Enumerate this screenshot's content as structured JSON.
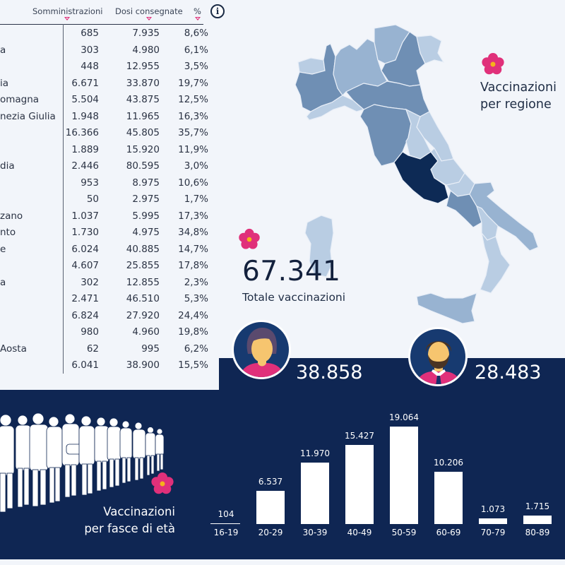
{
  "table": {
    "headers": {
      "somministrazioni": "Somministrazioni",
      "dosi": "Dosi consegnate",
      "pct": "%"
    },
    "info_icon": "i",
    "rows": [
      {
        "name": "",
        "somm": "685",
        "dosi": "7.935",
        "pct": "8,6%"
      },
      {
        "name": "a",
        "somm": "303",
        "dosi": "4.980",
        "pct": "6,1%"
      },
      {
        "name": "",
        "somm": "448",
        "dosi": "12.955",
        "pct": "3,5%"
      },
      {
        "name": "ia",
        "somm": "6.671",
        "dosi": "33.870",
        "pct": "19,7%"
      },
      {
        "name": "omagna",
        "somm": "5.504",
        "dosi": "43.875",
        "pct": "12,5%"
      },
      {
        "name": "nezia Giulia",
        "somm": "1.948",
        "dosi": "11.965",
        "pct": "16,3%"
      },
      {
        "name": "",
        "somm": "16.366",
        "dosi": "45.805",
        "pct": "35,7%"
      },
      {
        "name": "",
        "somm": "1.889",
        "dosi": "15.920",
        "pct": "11,9%"
      },
      {
        "name": "dia",
        "somm": "2.446",
        "dosi": "80.595",
        "pct": "3,0%"
      },
      {
        "name": "",
        "somm": "953",
        "dosi": "8.975",
        "pct": "10,6%"
      },
      {
        "name": "",
        "somm": "50",
        "dosi": "2.975",
        "pct": "1,7%"
      },
      {
        "name": "zano",
        "somm": "1.037",
        "dosi": "5.995",
        "pct": "17,3%"
      },
      {
        "name": "nto",
        "somm": "1.730",
        "dosi": "4.975",
        "pct": "34,8%"
      },
      {
        "name": "e",
        "somm": "6.024",
        "dosi": "40.885",
        "pct": "14,7%"
      },
      {
        "name": "",
        "somm": "4.607",
        "dosi": "25.855",
        "pct": "17,8%"
      },
      {
        "name": "a",
        "somm": "302",
        "dosi": "12.855",
        "pct": "2,3%"
      },
      {
        "name": "",
        "somm": "2.471",
        "dosi": "46.510",
        "pct": "5,3%"
      },
      {
        "name": "",
        "somm": "6.824",
        "dosi": "27.920",
        "pct": "24,4%"
      },
      {
        "name": "",
        "somm": "980",
        "dosi": "4.960",
        "pct": "19,8%"
      },
      {
        "name": "Aosta",
        "somm": "62",
        "dosi": "995",
        "pct": "6,2%"
      },
      {
        "name": "",
        "somm": "6.041",
        "dosi": "38.900",
        "pct": "15,5%"
      }
    ]
  },
  "map": {
    "title_line1": "Vaccinazioni",
    "title_line2": "per regione",
    "highlight_color": "#0d2a55",
    "shade_light": "#b9cde3",
    "shade_mid": "#98b3d1",
    "shade_dark": "#6f8fb4"
  },
  "total": {
    "value": "67.341",
    "label": "Totale vaccinazioni"
  },
  "gender": {
    "female": {
      "icon": "female-avatar-icon",
      "value": "38.858"
    },
    "male": {
      "icon": "male-avatar-icon",
      "value": "28.483"
    }
  },
  "age_section": {
    "title_line1": "Vaccinazioni",
    "title_line2": "per fasce di età"
  },
  "colors": {
    "navy": "#0f2653",
    "accent_pink": "#e0307a",
    "background": "#f2f5fa"
  },
  "chart_data": {
    "type": "bar",
    "title": "Vaccinazioni per fasce di età",
    "categories": [
      "16-19",
      "20-29",
      "30-39",
      "40-49",
      "50-59",
      "60-69",
      "70-79",
      "80-89"
    ],
    "values": [
      104,
      6537,
      11970,
      15427,
      19064,
      10206,
      1073,
      1715
    ],
    "value_labels": [
      "104",
      "6.537",
      "11.970",
      "15.427",
      "19.064",
      "10.206",
      "1.073",
      "1.715"
    ],
    "xlabel": "",
    "ylabel": "",
    "ylim": [
      0,
      19064
    ],
    "grid": false,
    "legend": "none"
  }
}
